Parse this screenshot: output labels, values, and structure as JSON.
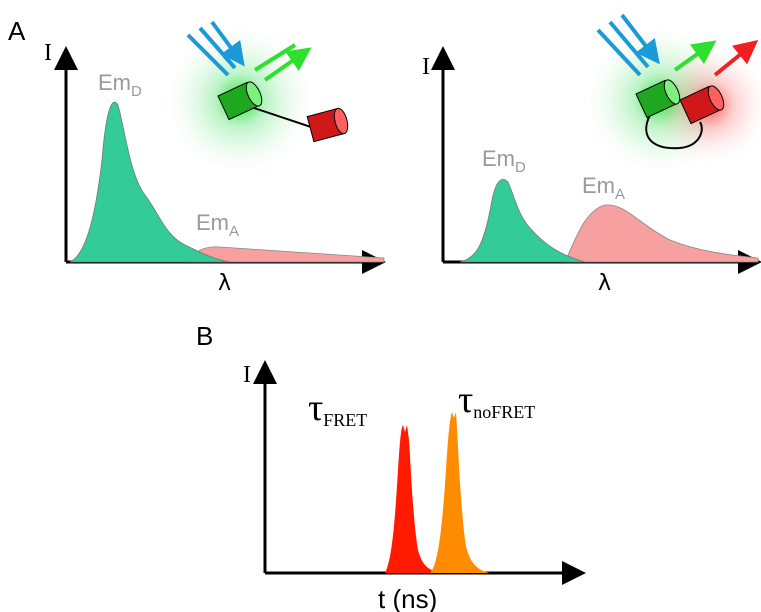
{
  "panel_a": {
    "label": "A",
    "left": {
      "y_axis": "I",
      "x_axis": "λ",
      "donor": {
        "text": "Em",
        "sub": "D"
      },
      "acceptor": {
        "text": "Em",
        "sub": "A"
      }
    },
    "right": {
      "y_axis": "I",
      "x_axis": "λ",
      "donor": {
        "text": "Em",
        "sub": "D"
      },
      "acceptor": {
        "text": "Em",
        "sub": "A"
      }
    }
  },
  "panel_b": {
    "label": "B",
    "y_axis": "I",
    "x_axis": "t (ns)",
    "fret": {
      "symbol": "τ",
      "sub": "FRET"
    },
    "nofret": {
      "symbol": "τ",
      "sub": "noFRET"
    }
  }
}
